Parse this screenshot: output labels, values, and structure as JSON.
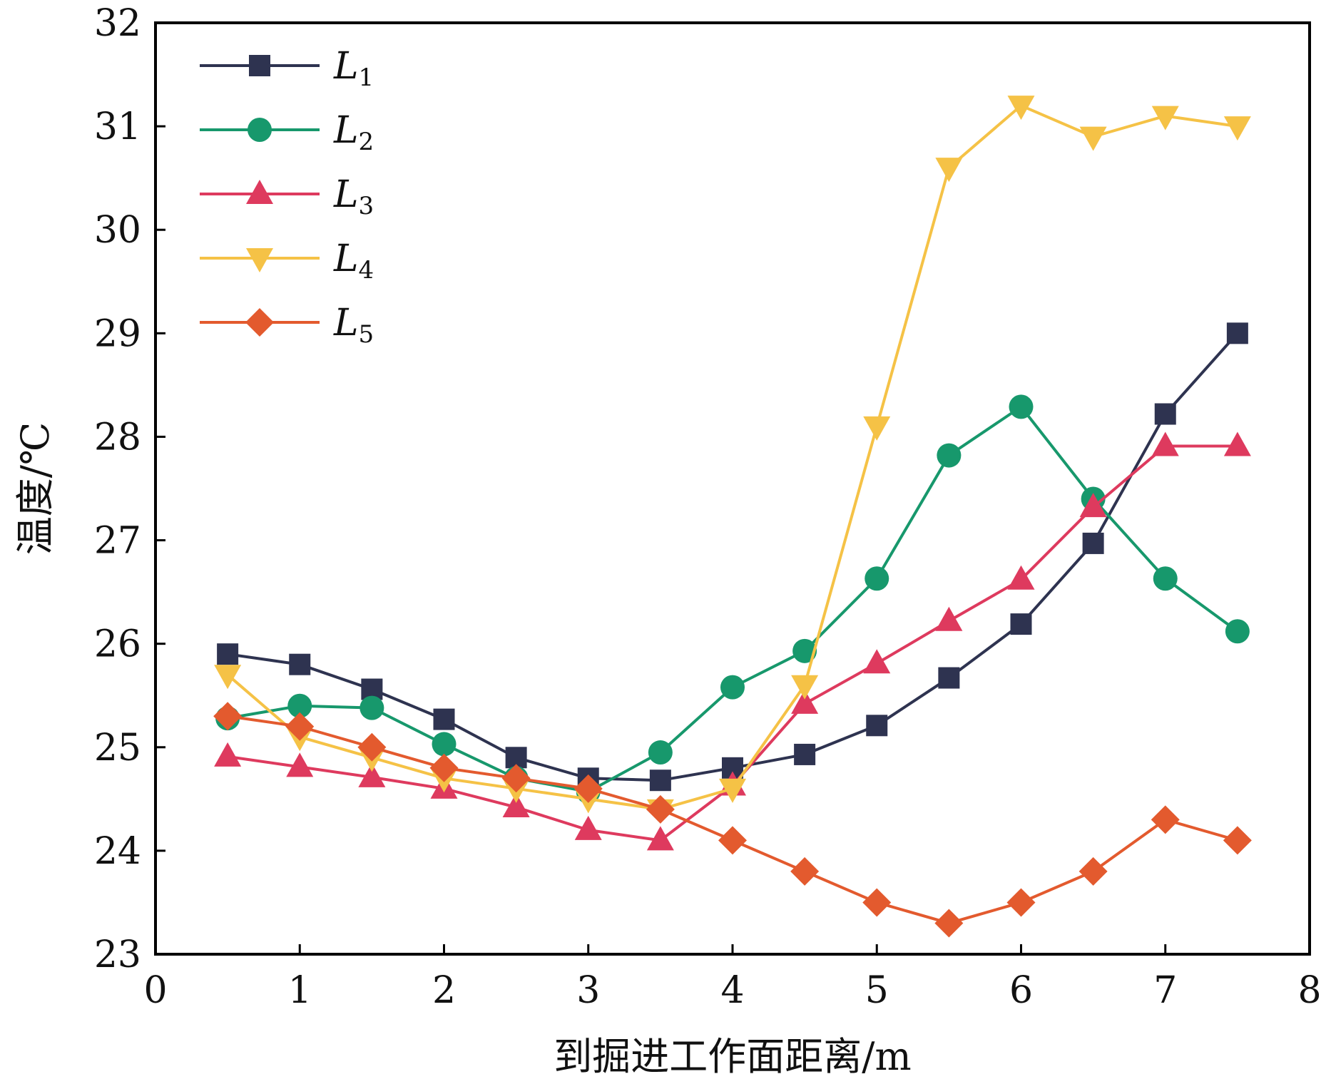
{
  "chart_data": {
    "type": "line",
    "title": "",
    "xlabel": "到掘进工作面距离/m",
    "ylabel": "温度/℃",
    "xlim": [
      0,
      8
    ],
    "ylim": [
      23,
      32
    ],
    "xticks": [
      "0",
      "1",
      "2",
      "3",
      "4",
      "5",
      "6",
      "7",
      "8"
    ],
    "yticks": [
      "23",
      "24",
      "25",
      "26",
      "27",
      "28",
      "29",
      "30",
      "31",
      "32"
    ],
    "grid": false,
    "legend_position": "top-left",
    "x": [
      0.5,
      1,
      1.5,
      2,
      2.5,
      3,
      3.5,
      4,
      4.5,
      5,
      5.5,
      6,
      6.5,
      7,
      7.5
    ],
    "series": [
      {
        "name": "L",
        "sub": "1",
        "color": "#2e3350",
        "marker": "square",
        "values": [
          25.9,
          25.8,
          25.56,
          25.27,
          24.9,
          24.7,
          24.68,
          24.8,
          24.93,
          25.21,
          25.67,
          26.19,
          26.97,
          28.22,
          29.0
        ]
      },
      {
        "name": "L",
        "sub": "2",
        "color": "#17986c",
        "marker": "circle",
        "values": [
          25.28,
          25.4,
          25.38,
          25.03,
          24.7,
          24.57,
          24.95,
          25.58,
          25.93,
          26.63,
          27.82,
          28.29,
          27.4,
          26.63,
          26.12
        ]
      },
      {
        "name": "L",
        "sub": "3",
        "color": "#de3a5e",
        "marker": "triangle-up",
        "values": [
          24.91,
          24.81,
          24.71,
          24.6,
          24.42,
          24.2,
          24.1,
          24.63,
          25.42,
          25.81,
          26.22,
          26.62,
          27.32,
          27.91,
          27.91
        ]
      },
      {
        "name": "L",
        "sub": "4",
        "color": "#f5c246",
        "marker": "triangle-down",
        "values": [
          25.7,
          25.1,
          24.9,
          24.7,
          24.6,
          24.5,
          24.4,
          24.6,
          25.6,
          28.1,
          30.6,
          31.2,
          30.9,
          31.1,
          31.0
        ]
      },
      {
        "name": "L",
        "sub": "5",
        "color": "#e35a2e",
        "marker": "diamond",
        "values": [
          25.3,
          25.2,
          25.0,
          24.8,
          24.7,
          24.6,
          24.4,
          24.1,
          23.8,
          23.5,
          23.3,
          23.5,
          23.8,
          24.3,
          24.1
        ]
      }
    ]
  }
}
